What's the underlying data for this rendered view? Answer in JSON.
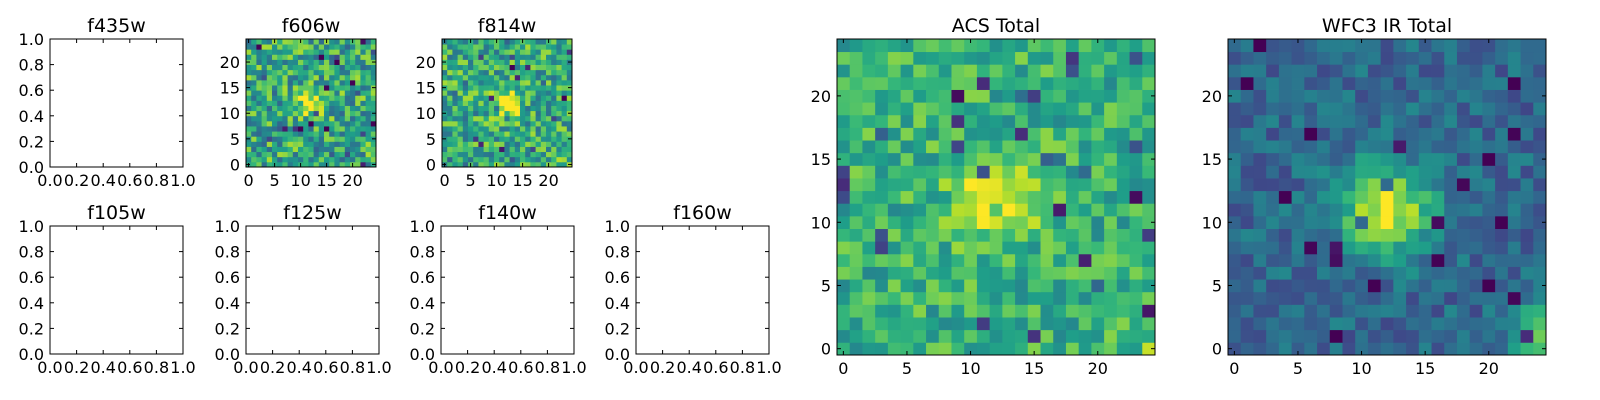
{
  "figure": {
    "panels": [
      {
        "id": "f435w",
        "title": "f435w",
        "kind": "empty"
      },
      {
        "id": "f606w",
        "title": "f606w",
        "kind": "image"
      },
      {
        "id": "f814w",
        "title": "f814w",
        "kind": "image"
      },
      {
        "id": "acs-total",
        "title": "ACS Total",
        "kind": "image"
      },
      {
        "id": "f105w",
        "title": "f105w",
        "kind": "empty"
      },
      {
        "id": "f125w",
        "title": "f125w",
        "kind": "empty"
      },
      {
        "id": "f140w",
        "title": "f140w",
        "kind": "empty"
      },
      {
        "id": "f160w",
        "title": "f160w",
        "kind": "empty"
      },
      {
        "id": "wfc3-ir-total",
        "title": "WFC3 IR Total",
        "kind": "image"
      }
    ],
    "empty_axis_ticks": [
      "0.0",
      "0.2",
      "0.4",
      "0.6",
      "0.8",
      "1.0"
    ],
    "small_image_ticks": {
      "x": [
        "0",
        "5",
        "10",
        "15",
        "20"
      ],
      "y": [
        "0",
        "5",
        "10",
        "15",
        "20"
      ]
    },
    "large_image_ticks": {
      "x": [
        "0",
        "5",
        "10",
        "15",
        "20"
      ],
      "y": [
        "0",
        "5",
        "10",
        "15",
        "20"
      ]
    }
  },
  "chart_data": [
    {
      "type": "heatmap",
      "title": "f606w",
      "grid_size": [
        25,
        25
      ],
      "colormap": "viridis",
      "source_peak_approx": [
        12,
        12
      ],
      "xlim": [
        -0.5,
        24.5
      ],
      "ylim": [
        -0.5,
        24.5
      ]
    },
    {
      "type": "heatmap",
      "title": "f814w",
      "grid_size": [
        25,
        25
      ],
      "colormap": "viridis",
      "source_peak_approx": [
        12,
        12
      ],
      "xlim": [
        -0.5,
        24.5
      ],
      "ylim": [
        -0.5,
        24.5
      ]
    },
    {
      "type": "heatmap",
      "title": "ACS Total",
      "grid_size": [
        25,
        25
      ],
      "colormap": "viridis",
      "source_peak_approx": [
        12,
        12
      ],
      "xlim": [
        -0.5,
        24.5
      ],
      "ylim": [
        -0.5,
        24.5
      ]
    },
    {
      "type": "heatmap",
      "title": "WFC3 IR Total",
      "grid_size": [
        25,
        25
      ],
      "colormap": "viridis",
      "source_peak_approx": [
        12,
        11
      ],
      "xlim": [
        -0.5,
        24.5
      ],
      "ylim": [
        -0.5,
        24.5
      ]
    }
  ]
}
